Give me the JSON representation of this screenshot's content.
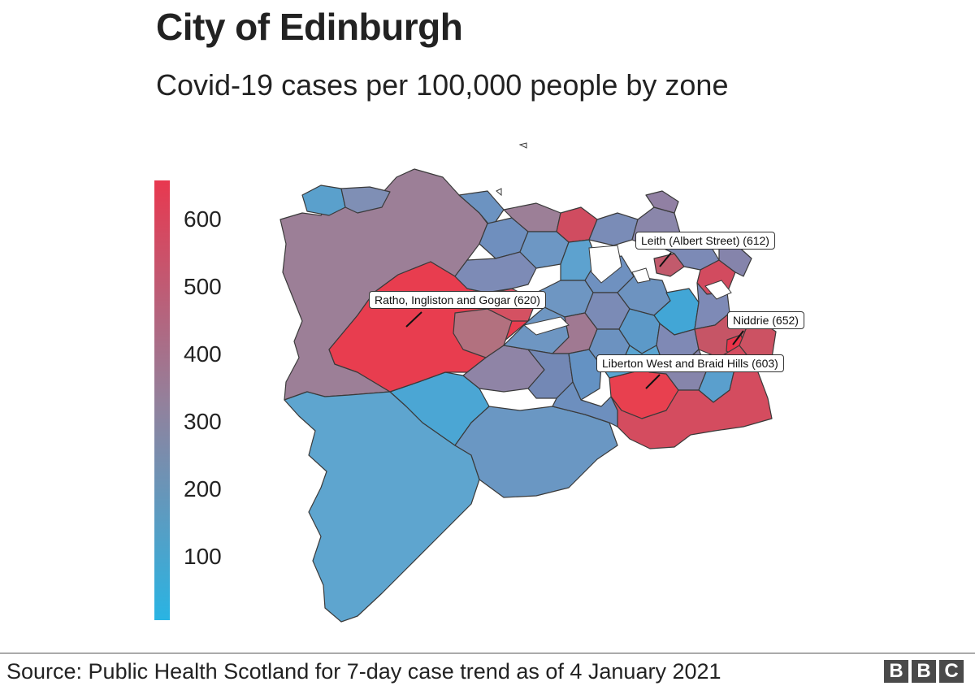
{
  "header": {
    "title": "City of Edinburgh",
    "subtitle": "Covid-19 cases per 100,000 people by zone"
  },
  "legend": {
    "ticks": [
      "600",
      "500",
      "400",
      "300",
      "200",
      "100"
    ],
    "tick_values": [
      600,
      500,
      400,
      300,
      200,
      100
    ],
    "range": [
      0,
      650
    ],
    "colors": {
      "low": "#29b4e3",
      "mid": "#94809b",
      "high": "#e8384f"
    }
  },
  "map": {
    "callouts": [
      {
        "label": "Leith (Albert Street) (612)",
        "value": 612
      },
      {
        "label": "Ratho, Ingliston and Gogar (620)",
        "value": 620
      },
      {
        "label": "Niddrie (652)",
        "value": 652
      },
      {
        "label": "Liberton West and Braid Hills (603)",
        "value": 603
      }
    ]
  },
  "footer": {
    "source": "Source: Public Health Scotland for 7-day case trend as of 4 January 2021",
    "logo_letters": [
      "B",
      "B",
      "C"
    ]
  }
}
